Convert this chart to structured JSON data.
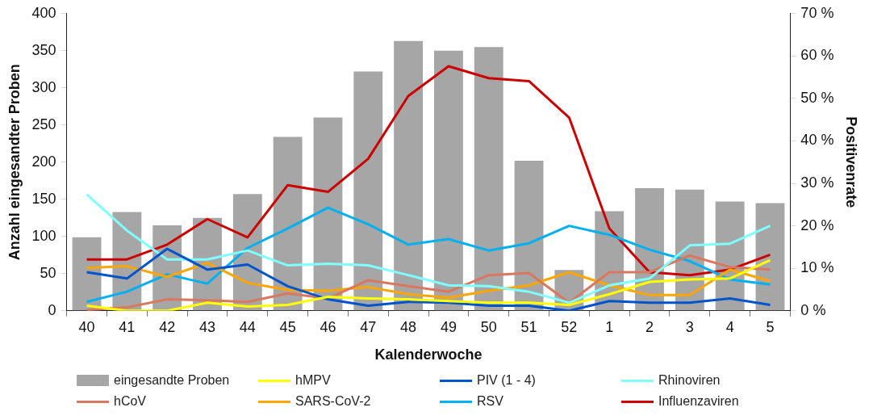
{
  "chart_data": {
    "type": "bar",
    "xlabel": "Kalenderwoche",
    "ylabel": "Anzahl eingesandter Proben",
    "y2label": "Positivenrate",
    "categories": [
      "40",
      "41",
      "42",
      "43",
      "44",
      "45",
      "46",
      "47",
      "48",
      "49",
      "50",
      "51",
      "52",
      "1",
      "2",
      "3",
      "4",
      "5"
    ],
    "series": [
      {
        "name": "eingesandte Proben",
        "color": "#a6a6a6",
        "values": [
          99,
          133,
          115,
          125,
          157,
          234,
          260,
          322,
          363,
          350,
          355,
          202,
          55,
          134,
          165,
          163,
          147,
          145
        ]
      },
      {
        "name": "hMPV",
        "type": "line",
        "axis": "y2",
        "color": "#ffff00",
        "values": [
          1.2,
          0,
          0,
          1.9,
          1,
          1.4,
          3.3,
          2.9,
          2.7,
          2.3,
          1.9,
          1.9,
          1.4,
          3.9,
          6.8,
          7.4,
          7.6,
          11.9
        ]
      },
      {
        "name": "PIV (1 - 4)",
        "type": "line",
        "axis": "y2",
        "color": "#0055cc",
        "values": [
          9.1,
          7.6,
          14.6,
          9.7,
          10.9,
          5.8,
          2.7,
          1.2,
          2.1,
          1.9,
          1.2,
          1.2,
          0,
          2.3,
          1.9,
          1.9,
          2.9,
          1.4
        ]
      },
      {
        "name": "Rhinoviren",
        "type": "line",
        "axis": "y2",
        "color": "#80ffff",
        "values": [
          27.4,
          18.9,
          12.1,
          12.1,
          14.2,
          10.7,
          11.1,
          10.7,
          8.4,
          6,
          5.8,
          4.5,
          1.9,
          6,
          7.6,
          15.4,
          15.8,
          20
        ]
      },
      {
        "name": "hCoV",
        "type": "line",
        "axis": "y2",
        "color": "#d9775f",
        "values": [
          0.2,
          0.8,
          2.7,
          2.5,
          2.1,
          4.1,
          2.9,
          7.2,
          5.8,
          4.5,
          8.4,
          8.9,
          1.9,
          9.1,
          9.1,
          13,
          10.3,
          9.7
        ]
      },
      {
        "name": "SARS-CoV-2",
        "type": "line",
        "axis": "y2",
        "color": "#ffa500",
        "values": [
          10.1,
          10.5,
          8,
          11.3,
          6.6,
          4.9,
          4.7,
          5.6,
          3.9,
          3.1,
          4.7,
          6,
          9.1,
          6,
          3.7,
          3.7,
          9.7,
          7
        ]
      },
      {
        "name": "RSV",
        "type": "line",
        "axis": "y2",
        "color": "#00b0f0",
        "values": [
          2.1,
          4.5,
          8.6,
          6.4,
          14.8,
          19.4,
          24.3,
          20.4,
          15.6,
          16.9,
          14.2,
          15.9,
          20,
          17.9,
          14.4,
          11.7,
          7.4,
          6.2
        ]
      },
      {
        "name": "Influenzaviren",
        "type": "line",
        "axis": "y2",
        "color": "#cc0000",
        "values": [
          12.1,
          12.1,
          15.6,
          21.6,
          17.3,
          29.6,
          28,
          35.8,
          50.6,
          57.6,
          54.8,
          54.1,
          45.5,
          19.4,
          9.1,
          8.4,
          9.7,
          13.2
        ]
      }
    ],
    "ylim": [
      0,
      400
    ],
    "yticks": [
      0,
      50,
      100,
      150,
      200,
      250,
      300,
      350,
      400
    ],
    "y2lim": [
      0,
      70
    ],
    "y2ticks": [
      {
        "value": 0,
        "label": "0 %"
      },
      {
        "value": 10,
        "label": "10 %"
      },
      {
        "value": 20,
        "label": "20 %"
      },
      {
        "value": 30,
        "label": "30 %"
      },
      {
        "value": 40,
        "label": "40 %"
      },
      {
        "value": 50,
        "label": "50 %"
      },
      {
        "value": 60,
        "label": "60 %"
      },
      {
        "value": 70,
        "label": "70 %"
      }
    ],
    "grid": false,
    "legend": "bottom",
    "marker": "none",
    "line_style": "solid"
  }
}
